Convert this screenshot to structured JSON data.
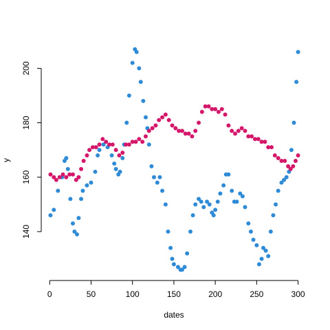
{
  "chart_data": {
    "type": "scatter",
    "xlabel": "dates",
    "ylabel": "y",
    "xlim": [
      -11,
      312
    ],
    "ylim": [
      122.8,
      210.2
    ],
    "xticks": [
      0,
      50,
      100,
      150,
      200,
      250,
      300
    ],
    "yticks": [
      140,
      160,
      180,
      200
    ],
    "series": [
      {
        "color": "#2f8bd6",
        "x": [
          1,
          5,
          10,
          15,
          18,
          20,
          22,
          25,
          28,
          30,
          33,
          35,
          38,
          40,
          45,
          50,
          55,
          58,
          60,
          65,
          70,
          75,
          78,
          80,
          83,
          85,
          88,
          90,
          93,
          96,
          100,
          103,
          105,
          108,
          110,
          113,
          116,
          118,
          120,
          123,
          126,
          130,
          133,
          136,
          140,
          143,
          146,
          148,
          150,
          155,
          158,
          160,
          163,
          166,
          170,
          173,
          176,
          180,
          183,
          186,
          190,
          193,
          196,
          198,
          200,
          203,
          206,
          210,
          213,
          216,
          220,
          223,
          226,
          230,
          233,
          236,
          240,
          243,
          246,
          250,
          253,
          256,
          258,
          261,
          264,
          267,
          270,
          273,
          276,
          280,
          283,
          286,
          289,
          292,
          295,
          298,
          300
        ],
        "values": [
          146,
          148,
          155,
          160,
          166,
          167,
          163,
          152,
          143,
          140,
          139,
          145,
          152,
          155,
          157,
          158,
          162,
          168,
          170,
          172,
          171,
          168,
          165,
          163,
          161,
          162,
          167,
          172,
          180,
          190,
          202,
          207,
          206,
          200,
          195,
          188,
          182,
          178,
          172,
          164,
          160,
          158,
          160,
          155,
          150,
          140,
          134,
          130,
          128,
          127,
          126,
          126,
          127,
          132,
          140,
          146,
          150,
          152,
          151,
          149,
          151,
          150,
          147,
          146,
          148,
          151,
          154,
          157,
          161,
          161,
          155,
          151,
          151,
          154,
          153,
          149,
          143,
          140,
          137,
          135,
          128,
          130,
          134,
          133,
          131,
          140,
          146,
          150,
          155,
          158,
          159,
          160,
          162,
          170,
          180,
          195,
          206
        ]
      },
      {
        "color": "#d4176b",
        "x": [
          1,
          5,
          8,
          12,
          16,
          20,
          24,
          28,
          32,
          35,
          38,
          41,
          45,
          48,
          52,
          56,
          60,
          64,
          68,
          72,
          76,
          80,
          84,
          88,
          92,
          96,
          100,
          104,
          108,
          112,
          116,
          120,
          124,
          128,
          132,
          136,
          140,
          144,
          148,
          152,
          156,
          160,
          164,
          168,
          172,
          176,
          180,
          184,
          188,
          192,
          196,
          200,
          204,
          208,
          212,
          216,
          220,
          224,
          228,
          232,
          236,
          240,
          244,
          248,
          252,
          256,
          260,
          264,
          268,
          272,
          276,
          280,
          284,
          288,
          291,
          294,
          297,
          300
        ],
        "values": [
          161,
          160,
          159,
          160,
          161,
          160,
          161,
          161,
          159,
          160,
          163,
          166,
          168,
          170,
          171,
          171,
          172,
          174,
          173,
          172,
          172,
          170,
          168,
          169,
          172,
          172,
          173,
          173,
          174,
          173,
          175,
          177,
          178,
          179,
          181,
          182,
          183,
          181,
          179,
          178,
          177,
          177,
          176,
          176,
          175,
          177,
          180,
          184,
          186,
          186,
          185,
          185,
          184,
          185,
          183,
          179,
          177,
          176,
          177,
          178,
          177,
          175,
          175,
          174,
          174,
          173,
          173,
          171,
          171,
          168,
          167,
          166,
          166,
          164,
          163,
          164,
          166,
          168
        ]
      }
    ]
  }
}
